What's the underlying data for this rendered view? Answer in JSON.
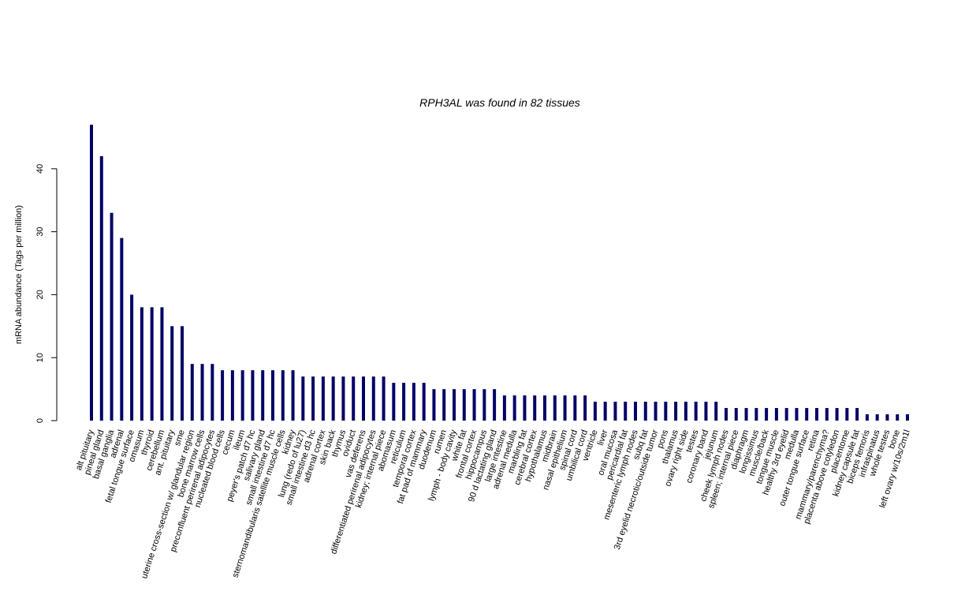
{
  "chart_data": {
    "type": "bar",
    "title": "RPH3AL  was found in  82  tissues",
    "xlabel": "",
    "ylabel": "mRNA abundance (Tags per million)",
    "ylim": [
      0,
      47
    ],
    "yticks": [
      0,
      10,
      20,
      30,
      40
    ],
    "grid": false,
    "bar_color": "#000066",
    "categories": [
      "alt pituitary",
      "pineal gland",
      "basal ganglia",
      "adrenal",
      "fetal tongue surface",
      "omasum",
      "thyroid",
      "cerebellum",
      "ant. pituitary",
      "sme",
      "uterine cross-section w/ glandular region",
      "bone marrow cells",
      "preconfluent perirenal adipocytes",
      "nucleated blood cells",
      "cecum",
      "ileum",
      "peyer's patch d7 hc",
      "salivary gland",
      "small intestine d7 hc",
      "sternomandibularis satellite muscle cells",
      "kidney",
      "lung (redo of lu27)",
      "small intestine d3 hc",
      "adrenal cortex",
      "skin back",
      "thymus",
      "oviduct",
      "vas deferens",
      "differentiated perirenal adipocytes",
      "kidney; internal piece",
      "abomasum",
      "reticulum",
      "temporal cortex",
      "fat pad of mammary",
      "duodenum",
      "rumen",
      "lymph - body cavity",
      "white fat",
      "frontal cortex",
      "hippocampus",
      "90 d lactating gland",
      "large intestine",
      "adrenal medulla",
      "marbling fat",
      "cerebral cortex",
      "hypothalamus",
      "midbrain",
      "nasal epithelium",
      "spinal cord",
      "umbilical cord",
      "ventricle",
      "liver",
      "oral mucosa",
      "pericardial fat",
      "mesenteric lymph nodes",
      "subq fat",
      "3rd eyelid necrotic/outside tumor",
      "pons",
      "thalamus",
      "ovary right side",
      "testes",
      "coronary band",
      "jejunum",
      "cheek lymph nodes",
      "spleen; internal piece",
      "diaphragm",
      "longissimus",
      "muscle/back",
      "tongue muscle",
      "healthy 3rd eyelid",
      "medulla",
      "outer tongue surface",
      "retina",
      "mammary/parenchyma?",
      "placenta above cotyledon",
      "placentome",
      "kidney capsule fat",
      "biceps femoris",
      "infraspinatus",
      "whole testes",
      "bone",
      "left ovary w/10s/2m1l"
    ],
    "values": [
      47,
      42,
      33,
      29,
      20,
      18,
      18,
      18,
      15,
      15,
      9,
      9,
      9,
      8,
      8,
      8,
      8,
      8,
      8,
      8,
      8,
      7,
      7,
      7,
      7,
      7,
      7,
      7,
      7,
      7,
      6,
      6,
      6,
      6,
      5,
      5,
      5,
      5,
      5,
      5,
      5,
      4,
      4,
      4,
      4,
      4,
      4,
      4,
      4,
      4,
      3,
      3,
      3,
      3,
      3,
      3,
      3,
      3,
      3,
      3,
      3,
      3,
      3,
      2,
      2,
      2,
      2,
      2,
      2,
      2,
      2,
      2,
      2,
      2,
      2,
      2,
      2,
      1,
      1,
      1,
      1,
      1
    ]
  }
}
